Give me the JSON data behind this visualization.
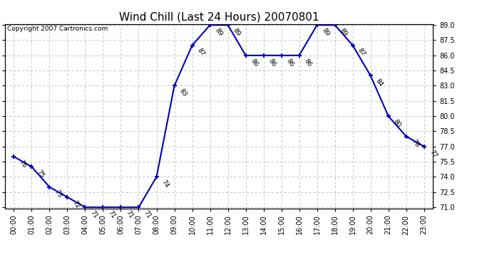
{
  "title": "Wind Chill (Last 24 Hours) 20070801",
  "copyright": "Copyright 2007 Cartronics.com",
  "hours": [
    0,
    1,
    2,
    3,
    4,
    5,
    6,
    7,
    8,
    9,
    10,
    11,
    12,
    13,
    14,
    15,
    16,
    17,
    18,
    19,
    20,
    21,
    22,
    23
  ],
  "values": [
    76,
    75,
    73,
    72,
    71,
    71,
    71,
    71,
    74,
    83,
    87,
    89,
    89,
    86,
    86,
    86,
    86,
    89,
    89,
    87,
    84,
    80,
    78,
    77
  ],
  "ylim_min": 71.0,
  "ylim_max": 89.0,
  "yticks": [
    71.0,
    72.5,
    74.0,
    75.5,
    77.0,
    78.5,
    80.0,
    81.5,
    83.0,
    84.5,
    86.0,
    87.5,
    89.0
  ],
  "line_color": "#0000bb",
  "bg_color": "#ffffff",
  "grid_color": "#bbbbbb",
  "title_fontsize": 11,
  "copyright_fontsize": 6.5,
  "label_fontsize": 6.5,
  "tick_fontsize": 7,
  "annot_rotation": -55
}
